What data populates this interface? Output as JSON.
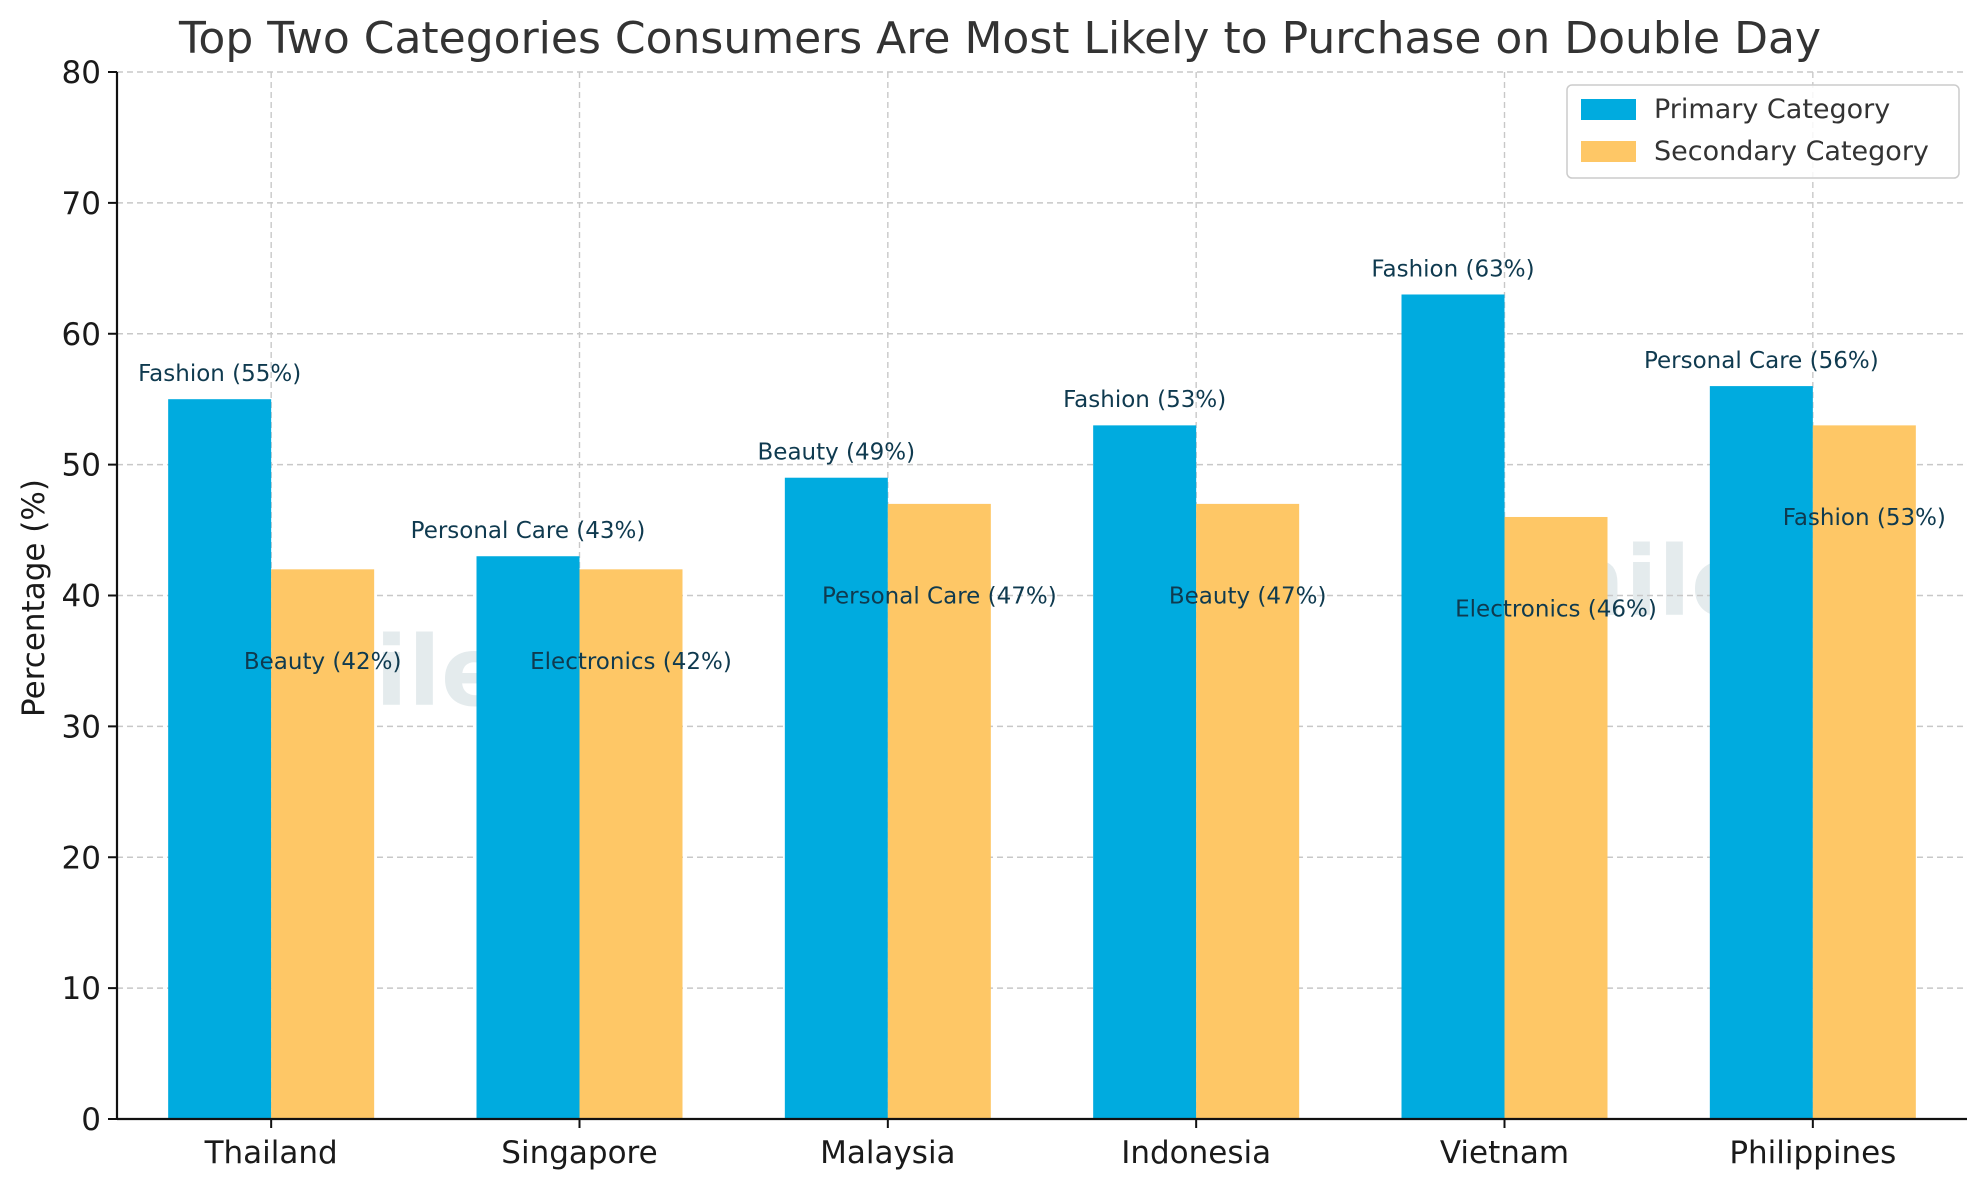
{
  "chart_data": {
    "type": "bar",
    "title": "Top Two Categories Consumers Are Most Likely to Purchase on Double Day",
    "xlabel": "",
    "ylabel": "Percentage (%)",
    "ylim": [
      0,
      80
    ],
    "yticks": [
      "0",
      "10",
      "20",
      "30",
      "40",
      "50",
      "60",
      "70",
      "80"
    ],
    "ytick_values": [
      0,
      10,
      20,
      30,
      40,
      50,
      60,
      70,
      80
    ],
    "grid": true,
    "legend_position": "top-right",
    "categories": [
      "Thailand",
      "Singapore",
      "Malaysia",
      "Indonesia",
      "Vietnam",
      "Philippines"
    ],
    "series": [
      {
        "name": "Primary Category",
        "color": "#00ABDF",
        "values": [
          55,
          43,
          49,
          53,
          63,
          56
        ],
        "labels": [
          "Fashion (55%)",
          "Personal Care (43%)",
          "Beauty (49%)",
          "Fashion (53%)",
          "Fashion (63%)",
          "Personal Care (56%)"
        ]
      },
      {
        "name": "Secondary Category",
        "color": "#FEC766",
        "values": [
          42,
          42,
          47,
          47,
          46,
          53
        ],
        "labels": [
          "Beauty (42%)",
          "Electronics (42%)",
          "Personal Care (47%)",
          "Beauty (47%)",
          "Electronics (46%)",
          "Fashion (53%)"
        ]
      }
    ],
    "label_color": "#0f3a4f",
    "watermark_text": "mileu"
  }
}
